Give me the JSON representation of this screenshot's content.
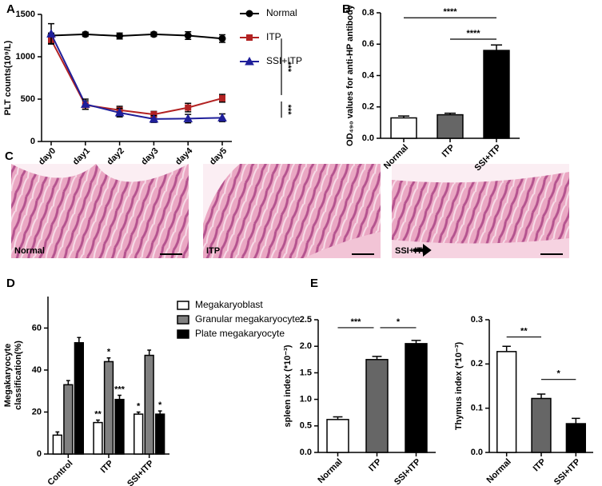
{
  "panel_labels": [
    "A",
    "B",
    "C",
    "D",
    "E"
  ],
  "histology": {
    "labels": [
      "Normal",
      "ITP",
      "SSI+ITP"
    ]
  },
  "chart_data": [
    {
      "type": "line",
      "ylabel": "PLT counts(10⁹/L)",
      "categories": [
        "day0",
        "day1",
        "day2",
        "day3",
        "day4",
        "day5"
      ],
      "ylim": [
        0,
        1500
      ],
      "yticks": [
        0,
        500,
        1000,
        1500
      ],
      "series": [
        {
          "name": "Normal",
          "color": "#000000",
          "marker": "circle",
          "values": [
            1250,
            1265,
            1245,
            1265,
            1250,
            1215
          ],
          "errors": [
            30,
            25,
            35,
            25,
            45,
            45
          ]
        },
        {
          "name": "ITP",
          "color": "#b22222",
          "marker": "square",
          "values": [
            1200,
            430,
            370,
            320,
            400,
            510
          ],
          "errors": [
            40,
            50,
            45,
            35,
            50,
            45
          ]
        },
        {
          "name": "SSI+ITP",
          "color": "#1f1f9a",
          "marker": "triangle",
          "values": [
            1270,
            440,
            340,
            265,
            270,
            280
          ],
          "errors": [
            120,
            60,
            50,
            40,
            50,
            45
          ]
        }
      ],
      "annotations": [
        "***",
        "***"
      ]
    },
    {
      "type": "bar",
      "ylabel": "OD₄₉₀ values for anti-HP antibody",
      "categories": [
        "Normal",
        "ITP",
        "SSI+ITP"
      ],
      "values": [
        0.13,
        0.15,
        0.56
      ],
      "errors": [
        0.012,
        0.01,
        0.035
      ],
      "colors": [
        "#ffffff",
        "#666666",
        "#000000"
      ],
      "ylim": [
        0,
        0.8
      ],
      "yticks": [
        {
          "value": 0,
          "label": "0.0"
        },
        0.2,
        0.4,
        0.6,
        0.8
      ],
      "annotations": [
        "****",
        "****"
      ]
    },
    {
      "type": "bar",
      "ylabel": [
        "Megakaryocyte",
        "classification(%)"
      ],
      "categories": [
        "Control",
        "ITP",
        "SSI+ITP"
      ],
      "ylim": [
        0,
        75
      ],
      "yticks": [
        0,
        20,
        40,
        60
      ],
      "series": [
        {
          "name": "Megakaryoblast",
          "color": "#ffffff",
          "values": [
            9,
            15,
            19
          ],
          "errors": [
            1.5,
            1.2,
            1
          ],
          "annotations": [
            null,
            "**",
            "*"
          ]
        },
        {
          "name": "Granular megakaryocyte",
          "color": "#808080",
          "values": [
            33,
            44,
            47
          ],
          "errors": [
            2,
            1.8,
            2.5
          ],
          "annotations": [
            null,
            "*",
            null
          ]
        },
        {
          "name": "Plate megakaryocyte",
          "color": "#000000",
          "values": [
            53,
            26,
            19
          ],
          "errors": [
            2.5,
            2,
            1.5
          ],
          "annotations": [
            null,
            "***",
            "*"
          ]
        }
      ]
    },
    {
      "type": "bar",
      "ylabel": "spleen index (*10⁻³)",
      "categories": [
        "Normal",
        "ITP",
        "SSI+ITP"
      ],
      "values": [
        0.62,
        1.75,
        2.05
      ],
      "errors": [
        0.05,
        0.06,
        0.06
      ],
      "colors": [
        "#ffffff",
        "#666666",
        "#000000"
      ],
      "ylim": [
        0,
        2.5
      ],
      "yticks": [
        {
          "value": 0,
          "label": "0.0"
        },
        0.5,
        {
          "value": 1,
          "label": "1.0"
        },
        1.5,
        {
          "value": 2,
          "label": "2.0"
        },
        2.5
      ],
      "annotations": [
        "***",
        "*"
      ]
    },
    {
      "type": "bar",
      "ylabel": "Thymus index (*10⁻³)",
      "categories": [
        "Normal",
        "ITP",
        "SSI+ITP"
      ],
      "values": [
        0.228,
        0.122,
        0.065
      ],
      "errors": [
        0.012,
        0.01,
        0.012
      ],
      "colors": [
        "#ffffff",
        "#666666",
        "#000000"
      ],
      "ylim": [
        0,
        0.3
      ],
      "yticks": [
        {
          "value": 0,
          "label": "0.0"
        },
        0.1,
        0.2,
        0.3
      ],
      "annotations": [
        "**",
        "*"
      ]
    }
  ]
}
